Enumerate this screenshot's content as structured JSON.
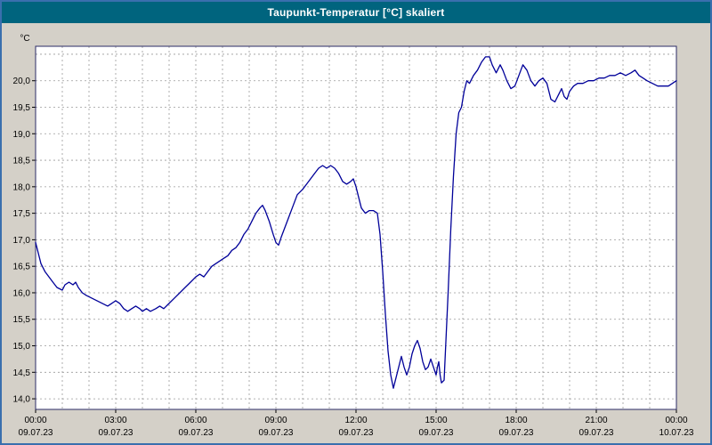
{
  "window": {
    "title": "Taupunkt-Temperatur [°C] skaliert",
    "title_bar_color": "#00647e",
    "border_color": "#3a6fae",
    "background_color": "#d4d0c8"
  },
  "chart_data": {
    "type": "line",
    "title": "Taupunkt-Temperatur [°C] skaliert",
    "ylabel": "°C",
    "xlabel": "",
    "xlim": [
      0,
      24
    ],
    "ylim": [
      13.8,
      20.65
    ],
    "grid": "on",
    "grid_style": "dashed",
    "legend": "none",
    "line_color": "#000099",
    "grid_color": "#9a9a9a",
    "frame_color": "#2b2b66",
    "plot_background": "#ffffff",
    "x_grid_step_hours": 1,
    "y_grid_values": [
      14.0,
      14.5,
      15.0,
      15.5,
      16.0,
      16.5,
      17.0,
      17.5,
      18.0,
      18.5,
      19.0,
      19.5,
      20.0,
      20.5
    ],
    "y_ticks": [
      {
        "value": 14.0,
        "label": "14,0"
      },
      {
        "value": 14.5,
        "label": "14,5"
      },
      {
        "value": 15.0,
        "label": "15,0"
      },
      {
        "value": 15.5,
        "label": "15,5"
      },
      {
        "value": 16.0,
        "label": "16,0"
      },
      {
        "value": 16.5,
        "label": "16,5"
      },
      {
        "value": 17.0,
        "label": "17,0"
      },
      {
        "value": 17.5,
        "label": "17,5"
      },
      {
        "value": 18.0,
        "label": "18,0"
      },
      {
        "value": 18.5,
        "label": "18,5"
      },
      {
        "value": 19.0,
        "label": "19,0"
      },
      {
        "value": 19.5,
        "label": "19,5"
      },
      {
        "value": 20.0,
        "label": "20,0"
      }
    ],
    "x_ticks": [
      {
        "hour": 0,
        "time": "00:00",
        "date": "09.07.23"
      },
      {
        "hour": 3,
        "time": "03:00",
        "date": "09.07.23"
      },
      {
        "hour": 6,
        "time": "06:00",
        "date": "09.07.23"
      },
      {
        "hour": 9,
        "time": "09:00",
        "date": "09.07.23"
      },
      {
        "hour": 12,
        "time": "12:00",
        "date": "09.07.23"
      },
      {
        "hour": 15,
        "time": "15:00",
        "date": "09.07.23"
      },
      {
        "hour": 18,
        "time": "18:00",
        "date": "09.07.23"
      },
      {
        "hour": 21,
        "time": "21:00",
        "date": "09.07.23"
      },
      {
        "hour": 24,
        "time": "00:00",
        "date": "10.07.23"
      }
    ],
    "series": [
      {
        "name": "Taupunkt-Temperatur",
        "color": "#000099",
        "points": [
          [
            0.0,
            16.95
          ],
          [
            0.1,
            16.75
          ],
          [
            0.2,
            16.55
          ],
          [
            0.35,
            16.4
          ],
          [
            0.5,
            16.3
          ],
          [
            0.65,
            16.2
          ],
          [
            0.8,
            16.1
          ],
          [
            1.0,
            16.05
          ],
          [
            1.1,
            16.15
          ],
          [
            1.25,
            16.2
          ],
          [
            1.4,
            16.15
          ],
          [
            1.5,
            16.2
          ],
          [
            1.6,
            16.1
          ],
          [
            1.75,
            16.0
          ],
          [
            1.9,
            15.95
          ],
          [
            2.1,
            15.9
          ],
          [
            2.3,
            15.85
          ],
          [
            2.5,
            15.8
          ],
          [
            2.7,
            15.75
          ],
          [
            2.85,
            15.8
          ],
          [
            3.0,
            15.85
          ],
          [
            3.15,
            15.8
          ],
          [
            3.3,
            15.7
          ],
          [
            3.45,
            15.65
          ],
          [
            3.6,
            15.7
          ],
          [
            3.75,
            15.75
          ],
          [
            3.9,
            15.7
          ],
          [
            4.0,
            15.65
          ],
          [
            4.15,
            15.7
          ],
          [
            4.3,
            15.65
          ],
          [
            4.5,
            15.7
          ],
          [
            4.65,
            15.75
          ],
          [
            4.8,
            15.7
          ],
          [
            5.0,
            15.8
          ],
          [
            5.2,
            15.9
          ],
          [
            5.4,
            16.0
          ],
          [
            5.6,
            16.1
          ],
          [
            5.8,
            16.2
          ],
          [
            6.0,
            16.3
          ],
          [
            6.15,
            16.35
          ],
          [
            6.3,
            16.3
          ],
          [
            6.45,
            16.4
          ],
          [
            6.6,
            16.5
          ],
          [
            6.75,
            16.55
          ],
          [
            6.9,
            16.6
          ],
          [
            7.05,
            16.65
          ],
          [
            7.2,
            16.7
          ],
          [
            7.35,
            16.8
          ],
          [
            7.5,
            16.85
          ],
          [
            7.65,
            16.95
          ],
          [
            7.8,
            17.1
          ],
          [
            7.95,
            17.2
          ],
          [
            8.1,
            17.35
          ],
          [
            8.25,
            17.5
          ],
          [
            8.4,
            17.6
          ],
          [
            8.5,
            17.65
          ],
          [
            8.6,
            17.55
          ],
          [
            8.75,
            17.35
          ],
          [
            8.9,
            17.1
          ],
          [
            9.0,
            16.95
          ],
          [
            9.1,
            16.9
          ],
          [
            9.2,
            17.05
          ],
          [
            9.35,
            17.25
          ],
          [
            9.5,
            17.45
          ],
          [
            9.65,
            17.65
          ],
          [
            9.8,
            17.85
          ],
          [
            9.9,
            17.9
          ],
          [
            10.0,
            17.95
          ],
          [
            10.15,
            18.05
          ],
          [
            10.3,
            18.15
          ],
          [
            10.45,
            18.25
          ],
          [
            10.6,
            18.35
          ],
          [
            10.75,
            18.4
          ],
          [
            10.9,
            18.35
          ],
          [
            11.05,
            18.4
          ],
          [
            11.2,
            18.35
          ],
          [
            11.35,
            18.25
          ],
          [
            11.5,
            18.1
          ],
          [
            11.65,
            18.05
          ],
          [
            11.8,
            18.1
          ],
          [
            11.9,
            18.15
          ],
          [
            12.0,
            18.0
          ],
          [
            12.1,
            17.8
          ],
          [
            12.2,
            17.6
          ],
          [
            12.35,
            17.5
          ],
          [
            12.5,
            17.55
          ],
          [
            12.65,
            17.55
          ],
          [
            12.8,
            17.5
          ],
          [
            12.9,
            17.1
          ],
          [
            13.0,
            16.4
          ],
          [
            13.1,
            15.6
          ],
          [
            13.2,
            14.9
          ],
          [
            13.3,
            14.45
          ],
          [
            13.4,
            14.2
          ],
          [
            13.5,
            14.4
          ],
          [
            13.6,
            14.6
          ],
          [
            13.7,
            14.8
          ],
          [
            13.8,
            14.6
          ],
          [
            13.9,
            14.45
          ],
          [
            14.0,
            14.6
          ],
          [
            14.1,
            14.85
          ],
          [
            14.2,
            15.0
          ],
          [
            14.3,
            15.1
          ],
          [
            14.4,
            14.95
          ],
          [
            14.5,
            14.7
          ],
          [
            14.6,
            14.55
          ],
          [
            14.7,
            14.6
          ],
          [
            14.8,
            14.75
          ],
          [
            14.9,
            14.6
          ],
          [
            15.0,
            14.45
          ],
          [
            15.05,
            14.6
          ],
          [
            15.1,
            14.7
          ],
          [
            15.15,
            14.45
          ],
          [
            15.2,
            14.3
          ],
          [
            15.3,
            14.35
          ],
          [
            15.35,
            14.9
          ],
          [
            15.45,
            16.0
          ],
          [
            15.55,
            17.2
          ],
          [
            15.65,
            18.2
          ],
          [
            15.75,
            19.0
          ],
          [
            15.85,
            19.4
          ],
          [
            15.95,
            19.5
          ],
          [
            16.05,
            19.8
          ],
          [
            16.15,
            20.0
          ],
          [
            16.25,
            19.95
          ],
          [
            16.4,
            20.1
          ],
          [
            16.55,
            20.2
          ],
          [
            16.7,
            20.35
          ],
          [
            16.85,
            20.45
          ],
          [
            17.0,
            20.45
          ],
          [
            17.1,
            20.3
          ],
          [
            17.25,
            20.15
          ],
          [
            17.4,
            20.3
          ],
          [
            17.5,
            20.2
          ],
          [
            17.65,
            20.0
          ],
          [
            17.8,
            19.85
          ],
          [
            17.95,
            19.9
          ],
          [
            18.1,
            20.1
          ],
          [
            18.25,
            20.3
          ],
          [
            18.4,
            20.2
          ],
          [
            18.55,
            20.0
          ],
          [
            18.7,
            19.9
          ],
          [
            18.85,
            20.0
          ],
          [
            19.0,
            20.05
          ],
          [
            19.15,
            19.95
          ],
          [
            19.3,
            19.65
          ],
          [
            19.45,
            19.6
          ],
          [
            19.6,
            19.75
          ],
          [
            19.7,
            19.85
          ],
          [
            19.8,
            19.7
          ],
          [
            19.9,
            19.65
          ],
          [
            20.0,
            19.8
          ],
          [
            20.15,
            19.9
          ],
          [
            20.3,
            19.95
          ],
          [
            20.5,
            19.95
          ],
          [
            20.7,
            20.0
          ],
          [
            20.9,
            20.0
          ],
          [
            21.1,
            20.05
          ],
          [
            21.3,
            20.05
          ],
          [
            21.5,
            20.1
          ],
          [
            21.7,
            20.1
          ],
          [
            21.9,
            20.15
          ],
          [
            22.1,
            20.1
          ],
          [
            22.3,
            20.15
          ],
          [
            22.45,
            20.2
          ],
          [
            22.6,
            20.1
          ],
          [
            22.75,
            20.05
          ],
          [
            22.9,
            20.0
          ],
          [
            23.1,
            19.95
          ],
          [
            23.3,
            19.9
          ],
          [
            23.5,
            19.9
          ],
          [
            23.7,
            19.9
          ],
          [
            23.85,
            19.95
          ],
          [
            24.0,
            20.0
          ]
        ]
      }
    ]
  }
}
